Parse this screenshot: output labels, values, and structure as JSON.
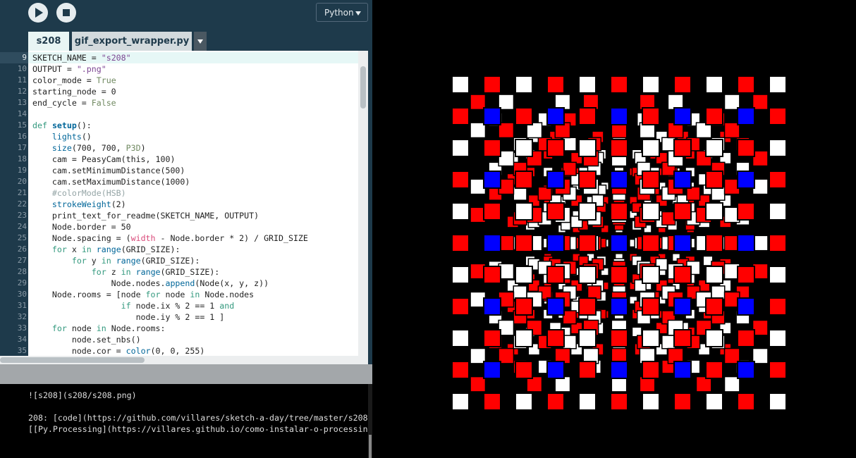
{
  "toolbar": {
    "mode": "Python"
  },
  "tabs": [
    "s208",
    "gif_export_wrapper.py"
  ],
  "editor": {
    "current_line": 9,
    "lines": [
      {
        "number": 9,
        "segments": [
          "SKETCH_NAME = ",
          {
            "text": "\"s208\"",
            "color": "#7d4793"
          }
        ]
      },
      {
        "number": 10,
        "segments": [
          "OUTPUT = ",
          {
            "text": "\".png\"",
            "color": "#7d4793"
          }
        ]
      },
      {
        "number": 11,
        "segments": [
          "color_mode = ",
          {
            "text": "True",
            "color": "#718a62"
          }
        ]
      },
      {
        "number": 12,
        "segments": [
          "starting_node = 0"
        ]
      },
      {
        "number": 13,
        "segments": [
          "end_cycle = ",
          {
            "text": "False",
            "color": "#718a62"
          }
        ]
      },
      {
        "number": 14,
        "segments": []
      },
      {
        "number": 15,
        "segments": [
          {
            "text": "def",
            "color": "#33997e"
          },
          " ",
          {
            "text": "setup",
            "color": "#006699",
            "bold": true
          },
          "():"
        ]
      },
      {
        "number": 16,
        "segments": [
          "    ",
          {
            "text": "lights",
            "color": "#006699"
          },
          "()"
        ]
      },
      {
        "number": 17,
        "segments": [
          "    ",
          {
            "text": "size",
            "color": "#006699"
          },
          "(700, 700, ",
          {
            "text": "P3D",
            "color": "#718a62"
          },
          ")"
        ]
      },
      {
        "number": 18,
        "segments": [
          "    cam = PeasyCam(this, 100)"
        ]
      },
      {
        "number": 19,
        "segments": [
          "    cam.setMinimumDistance(500)"
        ]
      },
      {
        "number": 20,
        "segments": [
          "    cam.setMaximumDistance(1000)"
        ]
      },
      {
        "number": 21,
        "segments": [
          {
            "text": "    #colorMode(HSB)",
            "color": "#95a5a6"
          }
        ]
      },
      {
        "number": 22,
        "segments": [
          "    ",
          {
            "text": "strokeWeight",
            "color": "#006699"
          },
          "(2)"
        ]
      },
      {
        "number": 23,
        "segments": [
          "    print_text_for_readme(SKETCH_NAME, OUTPUT)"
        ]
      },
      {
        "number": 24,
        "segments": [
          "    Node.border = 50"
        ]
      },
      {
        "number": 25,
        "segments": [
          "    Node.spacing = (",
          {
            "text": "width",
            "color": "#d94a7a"
          },
          " - Node.border * 2) / GRID_SIZE"
        ]
      },
      {
        "number": 26,
        "segments": [
          "    ",
          {
            "text": "for",
            "color": "#33997e"
          },
          " x ",
          {
            "text": "in",
            "color": "#33997e"
          },
          " ",
          {
            "text": "range",
            "color": "#006699"
          },
          "(GRID_SIZE):"
        ]
      },
      {
        "number": 27,
        "segments": [
          "        ",
          {
            "text": "for",
            "color": "#33997e"
          },
          " y ",
          {
            "text": "in",
            "color": "#33997e"
          },
          " ",
          {
            "text": "range",
            "color": "#006699"
          },
          "(GRID_SIZE):"
        ]
      },
      {
        "number": 28,
        "segments": [
          "            ",
          {
            "text": "for",
            "color": "#33997e"
          },
          " z ",
          {
            "text": "in",
            "color": "#33997e"
          },
          " ",
          {
            "text": "range",
            "color": "#006699"
          },
          "(GRID_SIZE):"
        ]
      },
      {
        "number": 29,
        "segments": [
          "                Node.nodes.",
          {
            "text": "append",
            "color": "#006699"
          },
          "(Node(x, y, z))"
        ]
      },
      {
        "number": 30,
        "segments": [
          "    Node.rooms = [node ",
          {
            "text": "for",
            "color": "#33997e"
          },
          " node ",
          {
            "text": "in",
            "color": "#33997e"
          },
          " Node.nodes"
        ]
      },
      {
        "number": 31,
        "segments": [
          "                  ",
          {
            "text": "if",
            "color": "#33997e"
          },
          " node.ix % 2 == 1 ",
          {
            "text": "and",
            "color": "#33997e"
          }
        ]
      },
      {
        "number": 32,
        "segments": [
          "                     node.iy % 2 == 1 ]"
        ]
      },
      {
        "number": 33,
        "segments": [
          "    ",
          {
            "text": "for",
            "color": "#33997e"
          },
          " node ",
          {
            "text": "in",
            "color": "#33997e"
          },
          " Node.rooms:"
        ]
      },
      {
        "number": 34,
        "segments": [
          "        node.set_nbs()"
        ]
      },
      {
        "number": 35,
        "segments": [
          "        node.cor = ",
          {
            "text": "color",
            "color": "#006699"
          },
          "(0, 0, 255)"
        ]
      }
    ]
  },
  "console": {
    "lines": [
      "![s208](s208/s208.png)",
      "208: [code](https://github.com/villares/sketch-a-day/tree/master/s208",
      "[[Py.Processing](https://villares.github.io/como-instalar-o-processin"
    ]
  }
}
